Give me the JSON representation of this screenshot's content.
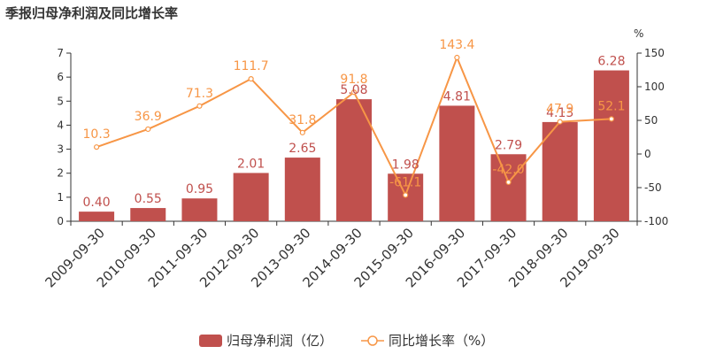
{
  "title": "季报归母净利润及同比增长率",
  "chart_data": {
    "type": "bar",
    "categories": [
      "2009-09-30",
      "2010-09-30",
      "2011-09-30",
      "2012-09-30",
      "2013-09-30",
      "2014-09-30",
      "2015-09-30",
      "2016-09-30",
      "2017-09-30",
      "2018-09-30",
      "2019-09-30"
    ],
    "series": [
      {
        "name": "归母净利润（亿）",
        "type": "bar",
        "axis": "left",
        "color": "#c0504d",
        "values": [
          0.4,
          0.55,
          0.95,
          2.01,
          2.65,
          5.08,
          1.98,
          4.81,
          2.79,
          4.13,
          6.28
        ],
        "labels": [
          "0.40",
          "0.55",
          "0.95",
          "2.01",
          "2.65",
          "5.08",
          "1.98",
          "4.81",
          "2.79",
          "4.13",
          "6.28"
        ]
      },
      {
        "name": "同比增长率（%）",
        "type": "line",
        "axis": "right",
        "color": "#f79646",
        "values": [
          10.3,
          36.9,
          71.3,
          111.7,
          31.8,
          91.8,
          -61.1,
          143.4,
          -42.0,
          47.9,
          52.1
        ],
        "labels": [
          "10.3",
          "36.9",
          "71.3",
          "111.7",
          "31.8",
          "91.8",
          "-61.1",
          "143.4",
          "-42.0",
          "47.9",
          "52.1"
        ]
      }
    ],
    "y_left": {
      "min": 0,
      "max": 7,
      "ticks": [
        "0",
        "1",
        "2",
        "3",
        "4",
        "5",
        "6",
        "7"
      ]
    },
    "y_right": {
      "min": -100,
      "max": 150,
      "unit": "%",
      "ticks": [
        "-100",
        "-50",
        "0",
        "50",
        "100",
        "150"
      ]
    },
    "grid": false,
    "legend_position": "bottom"
  }
}
